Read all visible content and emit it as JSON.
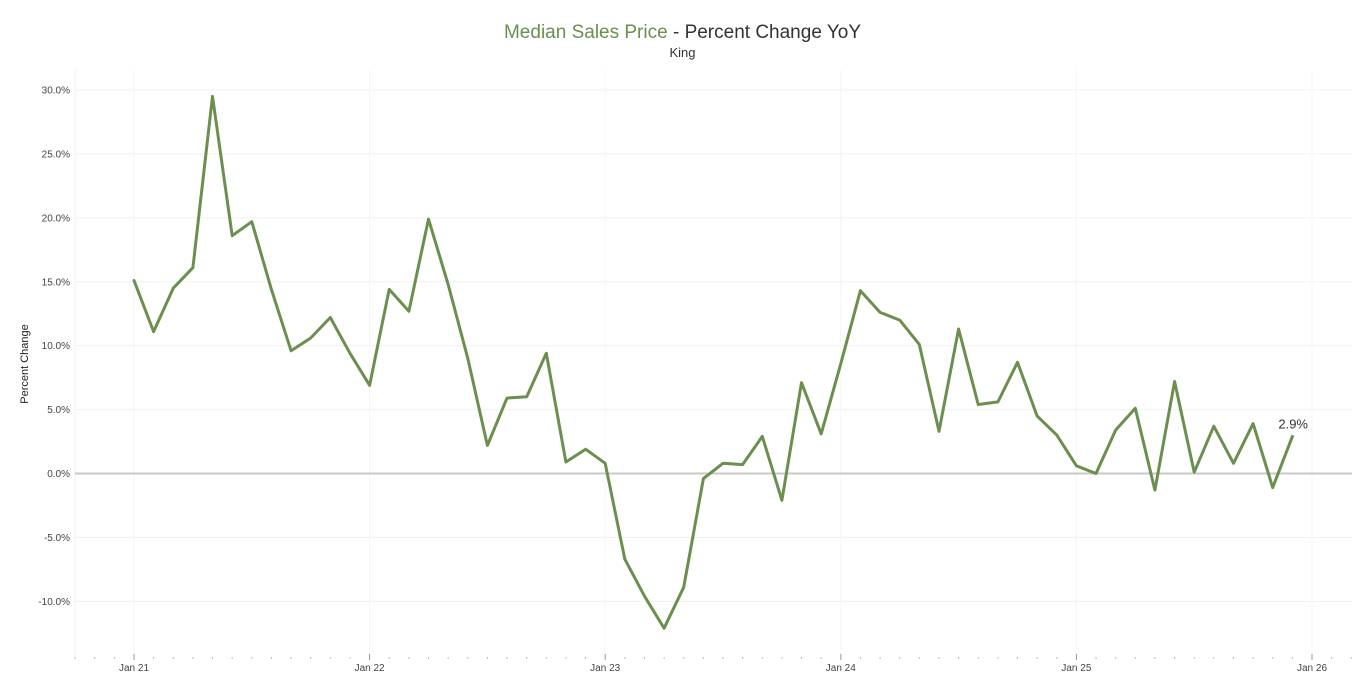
{
  "header": {
    "title_metric": "Median Sales Price",
    "title_rest": " - Percent Change YoY",
    "subtitle": "King"
  },
  "colors": {
    "line": "#6b8f4e",
    "zero_line": "#c8c8c8",
    "grid": "#f0f0f0"
  },
  "chart_data": {
    "type": "line",
    "title": "Median Sales Price - Percent Change YoY",
    "subtitle": "King",
    "xlabel": "",
    "ylabel": "Percent Change",
    "ylim": [
      -14,
      30
    ],
    "y_ticks": [
      30,
      25,
      20,
      15,
      10,
      5,
      0,
      -5,
      -10
    ],
    "y_tick_labels": [
      "30.0%",
      "25.0%",
      "20.0%",
      "15.0%",
      "10.0%",
      "5.0%",
      "0.0%",
      "-5.0%",
      "-10.0%"
    ],
    "x_tick_labels": [
      "Jan 21",
      "Jan 22",
      "Jan 23",
      "Jan 24",
      "Jan 25",
      "Jan 26"
    ],
    "grid": true,
    "end_label": "2.9%",
    "series": [
      {
        "values": [
          15.1,
          11.1,
          14.5,
          16.1,
          29.5,
          18.6,
          19.7,
          14.4,
          9.6,
          10.6,
          12.2,
          9.4,
          6.9,
          14.4,
          12.7,
          19.9,
          14.8,
          9.0,
          2.2,
          5.9,
          6.0,
          9.4,
          0.9,
          1.9,
          0.8,
          -6.7,
          -9.6,
          -12.1,
          -8.9,
          -0.4,
          0.8,
          0.7,
          2.9,
          -2.1,
          7.1,
          3.1,
          8.6,
          14.3,
          12.6,
          12.0,
          10.1,
          3.3,
          11.3,
          5.4,
          5.6,
          8.7,
          4.5,
          3.0,
          0.6,
          0.0,
          3.4,
          5.1,
          -1.3,
          7.2,
          0.1,
          3.7,
          0.8,
          3.9,
          -1.1,
          2.9
        ],
        "x_dates": [
          "2021-01",
          "2021-02",
          "2021-03",
          "2021-04",
          "2021-05",
          "2021-06",
          "2021-07",
          "2021-08",
          "2021-09",
          "2021-10",
          "2021-11",
          "2021-12",
          "2022-01",
          "2022-02",
          "2022-03",
          "2022-04",
          "2022-05",
          "2022-06",
          "2022-07",
          "2022-08",
          "2022-09",
          "2022-10",
          "2022-11",
          "2022-12",
          "2023-01",
          "2023-02",
          "2023-03",
          "2023-04",
          "2023-05",
          "2023-06",
          "2023-07",
          "2023-08",
          "2023-09",
          "2023-10",
          "2023-11",
          "2023-12",
          "2024-01",
          "2024-02",
          "2024-03",
          "2024-04",
          "2024-05",
          "2024-06",
          "2024-07",
          "2024-08",
          "2024-09",
          "2024-10",
          "2024-11",
          "2024-12",
          "2025-01",
          "2025-02",
          "2025-03",
          "2025-04",
          "2025-05",
          "2025-06",
          "2025-07",
          "2025-08",
          "2025-09",
          "2025-10",
          "2025-11",
          "2025-12"
        ]
      }
    ]
  }
}
